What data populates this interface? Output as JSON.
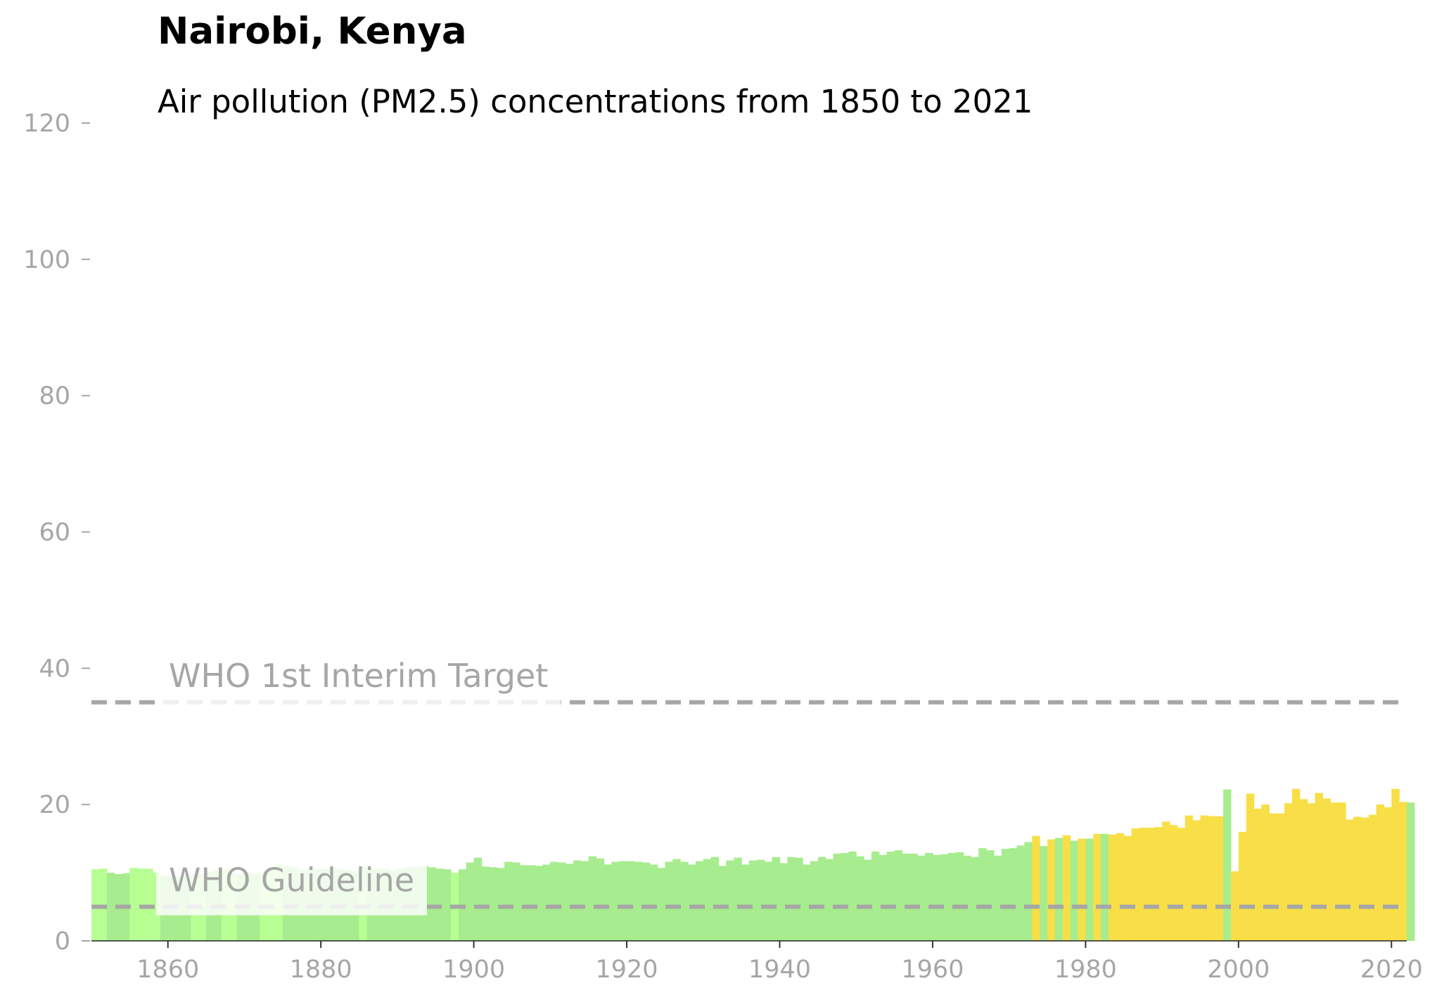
{
  "title": "Nairobi, Kenya",
  "subtitle": "Air pollution (PM2.5) concentrations from 1850 to 2021",
  "chart_data": {
    "type": "bar",
    "title": "Nairobi, Kenya",
    "subtitle": "Air pollution (PM2.5) concentrations from 1850 to 2021",
    "xlabel": "",
    "ylabel": "",
    "x_start": 1850,
    "x_end": 2021,
    "xlim": [
      1850,
      2022
    ],
    "ylim": [
      0,
      120
    ],
    "x_ticks": [
      1860,
      1880,
      1900,
      1920,
      1940,
      1960,
      1980,
      2000,
      2020
    ],
    "y_ticks": [
      0,
      20,
      40,
      60,
      80,
      100,
      120
    ],
    "grid": false,
    "colors": {
      "good_light": "#b8ff93",
      "good": "#a7ec8e",
      "moderate": "#f8df48",
      "reference_line": "#a6a6a6",
      "axis_text": "#a6a6a6"
    },
    "color_key": [
      "L",
      "L",
      "G",
      "G",
      "G",
      "L",
      "L",
      "L",
      "L",
      "G",
      "G",
      "G",
      "G",
      "L",
      "L",
      "G",
      "G",
      "L",
      "L",
      "G",
      "G",
      "G",
      "L",
      "L",
      "L",
      "G",
      "G",
      "G",
      "G",
      "G",
      "G",
      "G",
      "G",
      "G",
      "G",
      "L",
      "G",
      "G",
      "G",
      "G",
      "G",
      "G",
      "G",
      "G",
      "G",
      "G",
      "G",
      "L",
      "G",
      "G",
      "G",
      "G",
      "G",
      "G",
      "G",
      "G",
      "G",
      "G",
      "G",
      "G",
      "G",
      "G",
      "G",
      "G",
      "G",
      "G",
      "G",
      "G",
      "G",
      "G",
      "G",
      "G",
      "G",
      "G",
      "G",
      "G",
      "G",
      "G",
      "G",
      "G",
      "G",
      "G",
      "G",
      "G",
      "G",
      "G",
      "G",
      "G",
      "G",
      "G",
      "G",
      "G",
      "G",
      "G",
      "G",
      "G",
      "G",
      "G",
      "G",
      "G",
      "G",
      "G",
      "G",
      "G",
      "G",
      "G",
      "G",
      "G",
      "G",
      "G",
      "G",
      "G",
      "G",
      "G",
      "G",
      "G",
      "G",
      "G",
      "G",
      "G",
      "G",
      "G",
      "G",
      "Y",
      "G",
      "Y",
      "G",
      "Y",
      "G",
      "Y",
      "G",
      "Y",
      "G",
      "Y",
      "Y",
      "Y",
      "Y",
      "Y",
      "Y",
      "Y",
      "Y",
      "Y",
      "Y",
      "Y",
      "Y",
      "Y",
      "Y",
      "Y",
      "G",
      "Y",
      "Y",
      "Y",
      "Y",
      "Y",
      "Y",
      "Y",
      "Y",
      "Y",
      "Y",
      "Y",
      "Y",
      "Y",
      "Y",
      "Y",
      "Y",
      "Y",
      "Y",
      "Y",
      "Y",
      "Y",
      "Y",
      "Y"
    ],
    "values": [
      10.5,
      10.6,
      10.0,
      9.8,
      9.9,
      10.7,
      10.6,
      10.6,
      10.0,
      9.5,
      9.5,
      9.4,
      9.6,
      9.8,
      9.9,
      10.1,
      10.4,
      10.5,
      9.9,
      9.8,
      10.0,
      9.8,
      10.2,
      10.6,
      11.3,
      11.0,
      10.8,
      10.4,
      10.6,
      10.5,
      10.6,
      10.8,
      10.5,
      10.4,
      10.2,
      11.0,
      10.5,
      10.6,
      10.6,
      10.3,
      10.6,
      10.9,
      10.8,
      11.0,
      10.8,
      10.6,
      10.5,
      10.0,
      10.5,
      11.5,
      12.2,
      10.9,
      10.8,
      10.7,
      11.6,
      11.5,
      11.1,
      11.1,
      11.0,
      11.2,
      11.6,
      11.5,
      11.3,
      11.8,
      11.7,
      12.4,
      12.1,
      11.2,
      11.6,
      11.7,
      11.7,
      11.6,
      11.5,
      11.2,
      10.7,
      11.6,
      12.0,
      11.6,
      11.2,
      11.7,
      12.0,
      12.3,
      11.0,
      11.8,
      12.2,
      11.2,
      11.8,
      11.9,
      11.6,
      12.3,
      11.4,
      12.3,
      12.2,
      11.2,
      11.7,
      12.3,
      12.0,
      12.8,
      12.9,
      13.1,
      12.4,
      11.9,
      13.1,
      12.6,
      13.1,
      13.3,
      12.8,
      12.8,
      12.5,
      12.9,
      12.6,
      12.7,
      12.9,
      13.0,
      12.5,
      12.3,
      13.6,
      13.3,
      12.5,
      13.5,
      13.6,
      14.0,
      14.5,
      15.4,
      13.9,
      14.9,
      15.1,
      15.5,
      14.7,
      15.0,
      15.0,
      15.7,
      15.7,
      15.6,
      15.8,
      15.4,
      16.5,
      16.6,
      16.6,
      16.7,
      17.5,
      17.0,
      16.6,
      18.4,
      17.7,
      18.4,
      18.3,
      18.3,
      22.2,
      10.2,
      16.0,
      21.6,
      19.4,
      20.0,
      18.7,
      18.7,
      20.2,
      22.3,
      20.8,
      20.2,
      21.7,
      20.9,
      20.3,
      20.3,
      17.8,
      18.2,
      18.1,
      18.5,
      20.0,
      19.6,
      22.3,
      20.4,
      20.3
    ],
    "reference_lines": [
      {
        "label": "WHO 1st Interim Target",
        "value": 35
      },
      {
        "label": "WHO Guideline",
        "value": 5
      }
    ]
  }
}
